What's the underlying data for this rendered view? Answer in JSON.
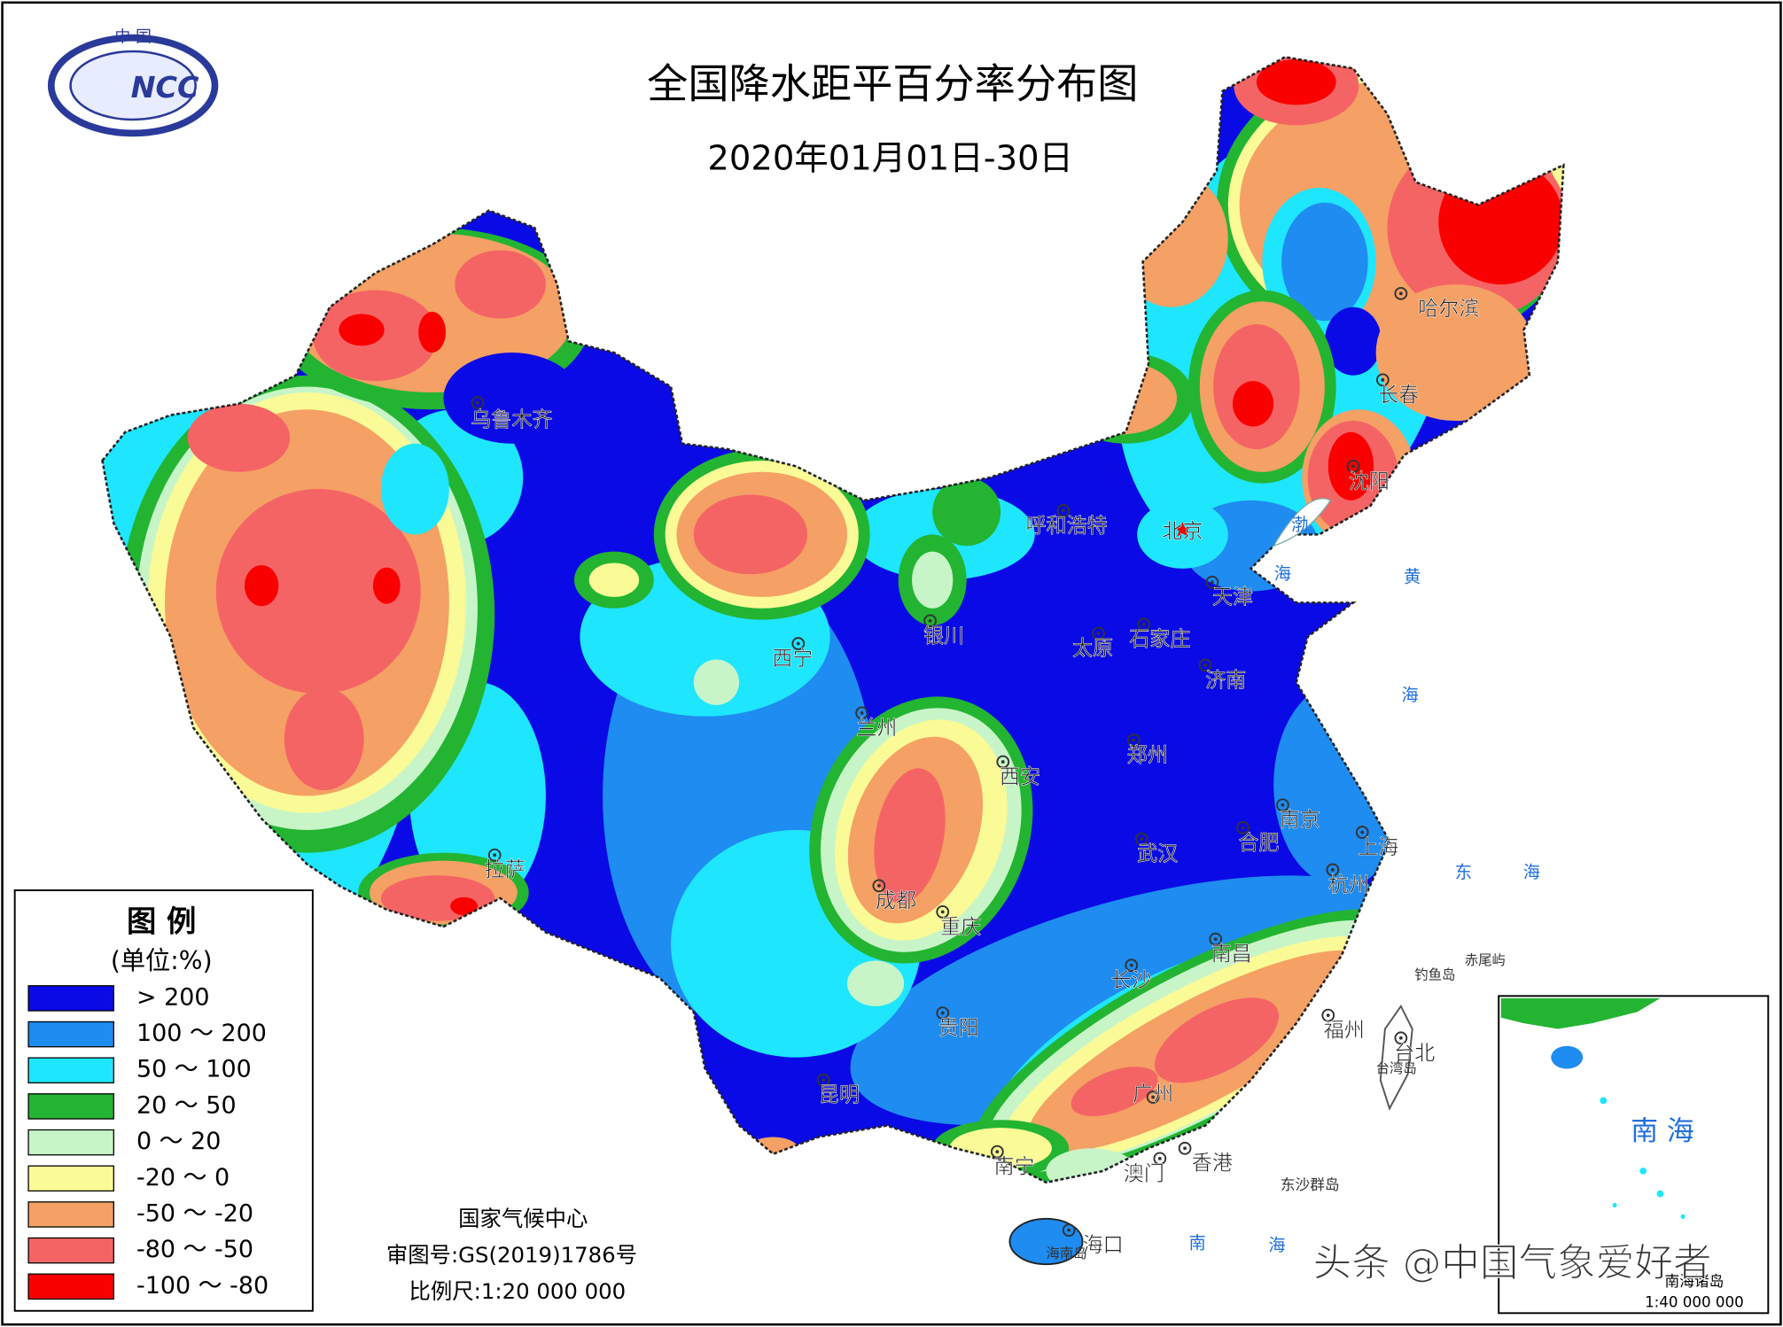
{
  "logo": {
    "country": "中 国",
    "abbr": "NCC"
  },
  "header": {
    "title": "全国降水距平百分率分布图",
    "subtitle": "2020年01月01日-30日"
  },
  "legend": {
    "title": "图 例",
    "unit": "(单位:%)",
    "items": [
      {
        "label": "> 200",
        "color": "#0a0ae6"
      },
      {
        "label": "100 ～ 200",
        "color": "#1e8cf0"
      },
      {
        "label": "50 ～ 100",
        "color": "#1ee6ff"
      },
      {
        "label": "20 ～ 50",
        "color": "#23b432"
      },
      {
        "label": "0 ～ 20",
        "color": "#c8f5c8"
      },
      {
        "label": "-20 ～ 0",
        "color": "#fafa96"
      },
      {
        "label": "-50 ～ -20",
        "color": "#f5a064"
      },
      {
        "label": "-80 ～ -50",
        "color": "#f56464"
      },
      {
        "label": "-100 ～ -80",
        "color": "#fa0000"
      }
    ]
  },
  "cities": [
    "乌鲁木齐",
    "哈尔滨",
    "长春",
    "沈阳",
    "呼和浩特",
    "北京",
    "天津",
    "石家庄",
    "太原",
    "济南",
    "银川",
    "西宁",
    "兰州",
    "西安",
    "郑州",
    "南京",
    "合肥",
    "上海",
    "武汉",
    "杭州",
    "拉萨",
    "成都",
    "重庆",
    "南昌",
    "长沙",
    "贵阳",
    "福州",
    "台北",
    "昆明",
    "广州",
    "南宁",
    "香港",
    "澳门",
    "海口"
  ],
  "places": [
    "钓鱼岛",
    "赤尾屿",
    "台湾岛",
    "东沙群岛",
    "海南岛",
    "渤",
    "海",
    "黄",
    "海",
    "东",
    "海",
    "南",
    "海"
  ],
  "footer": {
    "agency": "国家气候中心",
    "approval": "审图号:GS(2019)1786号",
    "scale": "比例尺:1:20 000 000"
  },
  "inset": {
    "title": "南 海",
    "label": "南海诸岛",
    "scale": "1:40 000 000"
  },
  "watermark": "头条 @中国气象爱好者"
}
